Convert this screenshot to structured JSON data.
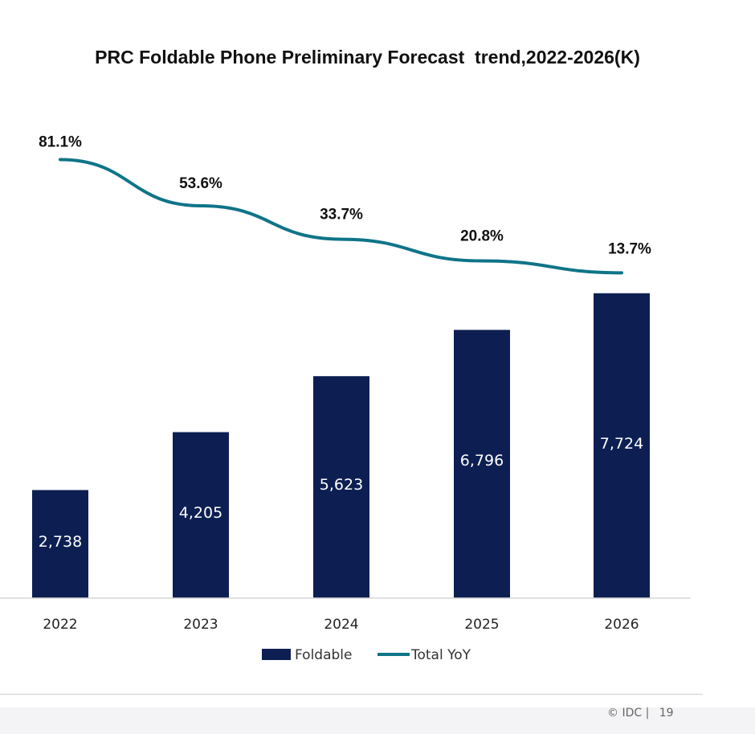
{
  "chart_data": {
    "type": "bar",
    "title": "PRC Foldable Phone Preliminary Forecast  trend,2022-2026(K)",
    "categories": [
      "2022",
      "2023",
      "2024",
      "2025",
      "2026"
    ],
    "series": [
      {
        "name": "Foldable",
        "type": "bar",
        "values": [
          2738,
          4205,
          5623,
          6796,
          7724
        ],
        "labels": [
          "2,738",
          "4,205",
          "5,623",
          "6,796",
          "7,724"
        ],
        "color": "#0d1f52"
      },
      {
        "name": "Total YoY",
        "type": "line",
        "values": [
          81.1,
          53.6,
          33.7,
          20.8,
          13.7
        ],
        "labels": [
          "81.1%",
          "53.6%",
          "33.7%",
          "20.8%",
          "13.7%"
        ],
        "color": "#0f7488"
      }
    ],
    "legend_position": "bottom",
    "grid": false
  },
  "footer": {
    "source": "© IDC |",
    "page": "19"
  }
}
